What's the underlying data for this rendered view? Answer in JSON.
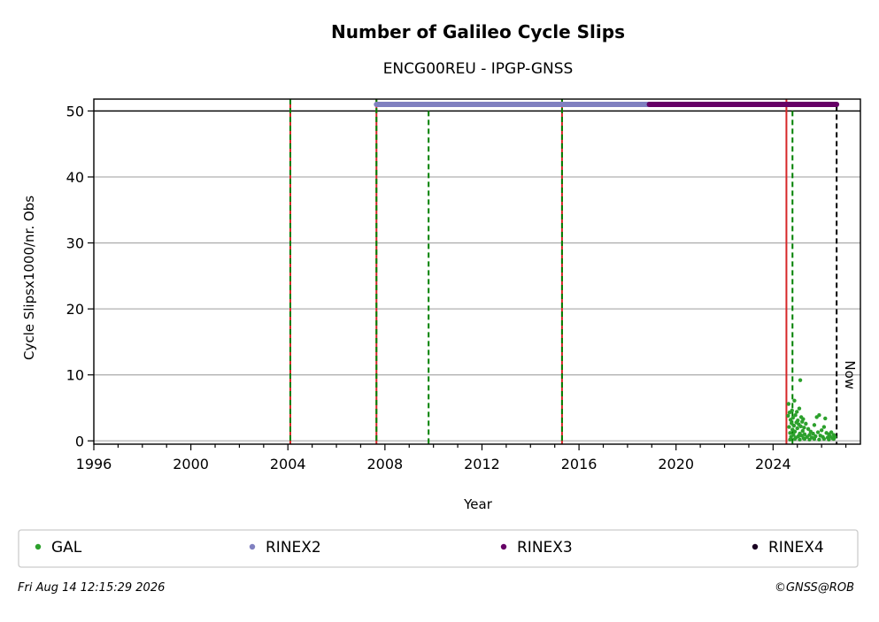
{
  "chart_data": {
    "type": "scatter",
    "title": "Number of Galileo Cycle Slips",
    "subtitle": "ENCG00REU - IPGP-GNSS",
    "xlabel": "Year",
    "ylabel": "Cycle Slipsx1000/nr. Obs",
    "xlim": [
      1996,
      2027.6
    ],
    "ylim": [
      -0.5,
      51.8
    ],
    "x_ticks": [
      1996,
      2000,
      2004,
      2008,
      2012,
      2016,
      2020,
      2024
    ],
    "y_ticks": [
      0,
      10,
      20,
      30,
      40,
      50
    ],
    "grid": "horizontal",
    "reference_line_y": 50,
    "now_label": "Now",
    "now_x": 2026.62,
    "event_lines": [
      {
        "x": 2004.1,
        "style": "red-green-dashed"
      },
      {
        "x": 2007.65,
        "style": "red-green-dashed"
      },
      {
        "x": 2009.8,
        "style": "green-dashed"
      },
      {
        "x": 2015.3,
        "style": "red-green-dashed"
      },
      {
        "x": 2024.55,
        "style": "red-solid"
      },
      {
        "x": 2024.8,
        "style": "green-dashed"
      }
    ],
    "format_bars": [
      {
        "name": "RINEX2",
        "x_start": 2007.65,
        "x_end": 2018.9,
        "y": 51,
        "color": "#8080c0"
      },
      {
        "name": "RINEX3",
        "x_start": 2018.9,
        "x_end": 2026.62,
        "y": 51,
        "color": "#660066"
      }
    ],
    "series": [
      {
        "name": "GAL",
        "color": "#2ca02c",
        "points": [
          [
            2024.62,
            3.8
          ],
          [
            2024.64,
            5.6
          ],
          [
            2024.66,
            2.1
          ],
          [
            2024.68,
            4.3
          ],
          [
            2024.7,
            1.2
          ],
          [
            2024.72,
            3.2
          ],
          [
            2024.74,
            0.6
          ],
          [
            2024.76,
            2.7
          ],
          [
            2024.78,
            4.6
          ],
          [
            2024.8,
            1.7
          ],
          [
            2024.82,
            3.5
          ],
          [
            2024.84,
            0.9
          ],
          [
            2024.86,
            2.3
          ],
          [
            2024.88,
            6.1
          ],
          [
            2024.9,
            1.4
          ],
          [
            2024.92,
            3.9
          ],
          [
            2024.94,
            0.5
          ],
          [
            2024.96,
            2.8
          ],
          [
            2024.98,
            4.4
          ],
          [
            2025.0,
            1.9
          ],
          [
            2025.02,
            3.1
          ],
          [
            2025.04,
            0.7
          ],
          [
            2025.06,
            2.5
          ],
          [
            2025.08,
            4.9
          ],
          [
            2025.1,
            1.1
          ],
          [
            2025.12,
            9.2
          ],
          [
            2025.14,
            2.2
          ],
          [
            2025.16,
            3.6
          ],
          [
            2025.18,
            0.8
          ],
          [
            2025.2,
            2.9
          ],
          [
            2025.22,
            1.5
          ],
          [
            2025.24,
            3.3
          ],
          [
            2025.26,
            0.4
          ],
          [
            2025.28,
            2.0
          ],
          [
            2025.3,
            1.0
          ],
          [
            2025.35,
            2.6
          ],
          [
            2025.4,
            0.6
          ],
          [
            2025.45,
            1.8
          ],
          [
            2025.5,
            0.9
          ],
          [
            2025.55,
            1.4
          ],
          [
            2025.6,
            0.5
          ],
          [
            2025.65,
            1.1
          ],
          [
            2025.7,
            2.4
          ],
          [
            2025.75,
            0.7
          ],
          [
            2025.8,
            3.6
          ],
          [
            2025.85,
            1.3
          ],
          [
            2025.9,
            3.9
          ],
          [
            2025.95,
            0.8
          ],
          [
            2026.0,
            1.6
          ],
          [
            2026.05,
            0.6
          ],
          [
            2026.1,
            2.1
          ],
          [
            2026.15,
            3.4
          ],
          [
            2026.2,
            1.2
          ],
          [
            2026.25,
            0.5
          ],
          [
            2026.3,
            1.0
          ],
          [
            2026.35,
            0.7
          ],
          [
            2026.4,
            1.3
          ],
          [
            2026.45,
            0.4
          ],
          [
            2026.5,
            0.9
          ],
          [
            2026.55,
            0.6
          ],
          [
            2024.7,
            0.2
          ],
          [
            2024.9,
            0.3
          ],
          [
            2025.1,
            0.2
          ],
          [
            2025.3,
            0.3
          ],
          [
            2025.5,
            0.2
          ],
          [
            2025.7,
            0.3
          ],
          [
            2025.9,
            0.2
          ],
          [
            2026.1,
            0.3
          ],
          [
            2026.3,
            0.2
          ],
          [
            2026.5,
            0.3
          ]
        ]
      }
    ],
    "legend": [
      {
        "label": "GAL",
        "color": "#2ca02c"
      },
      {
        "label": "RINEX2",
        "color": "#8080c0"
      },
      {
        "label": "RINEX3",
        "color": "#660066"
      },
      {
        "label": "RINEX4",
        "color": "#1a0022"
      }
    ],
    "legend_position": "bottom",
    "footer_left": "Fri Aug 14 12:15:29 2026",
    "footer_right": "©GNSS@ROB"
  }
}
